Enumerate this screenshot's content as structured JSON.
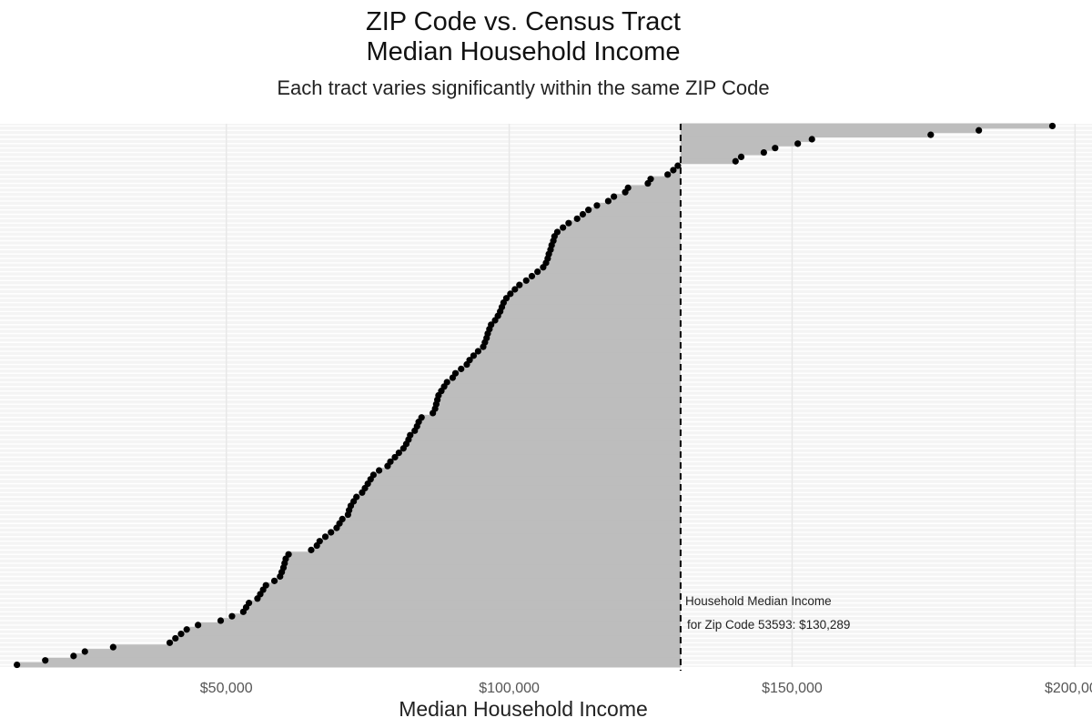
{
  "chart_data": {
    "type": "bar",
    "orientation": "horizontal",
    "title_line1": "ZIP Code vs. Census Tract",
    "title_line2": "Median Household Income",
    "subtitle": "Each tract varies significantly within the same ZIP Code",
    "xlabel": "Median Household Income",
    "ylabel": "",
    "xlim": [
      10000,
      203000
    ],
    "x_ticks": [
      50000,
      100000,
      150000,
      200000
    ],
    "x_tick_labels": [
      "$50,000",
      "$100,000",
      "$150,000",
      "$200,000"
    ],
    "reference_value": 130289,
    "annotation_line1": "Household Median Income",
    "annotation_line2": "for Zip Code 53593: $130,289",
    "grid": true,
    "colors": {
      "bar": "#bdbdbd",
      "point": "#000000",
      "grid": "#e8e8e8",
      "panel": "#f4f4f4",
      "reference_line": "#000000"
    },
    "values": [
      196000,
      183000,
      174500,
      153500,
      151000,
      147000,
      145000,
      141000,
      140000,
      129800,
      129000,
      128000,
      125000,
      124500,
      121000,
      120500,
      118500,
      117500,
      115500,
      114000,
      113000,
      112000,
      110500,
      109500,
      108500,
      108000,
      107800,
      107500,
      107300,
      107000,
      106800,
      106500,
      106000,
      105000,
      104000,
      103000,
      101800,
      101000,
      100200,
      99500,
      99000,
      98700,
      98400,
      98000,
      97500,
      96800,
      96500,
      96200,
      96000,
      95700,
      95400,
      94500,
      93700,
      93000,
      92500,
      91500,
      90500,
      90000,
      89000,
      88500,
      88000,
      87500,
      87300,
      87100,
      86900,
      86500,
      84500,
      84000,
      83700,
      83300,
      82500,
      82200,
      81800,
      81300,
      80500,
      79800,
      79000,
      78500,
      77000,
      76000,
      75500,
      75000,
      74500,
      74000,
      73000,
      72500,
      72000,
      71700,
      71500,
      70500,
      70000,
      69500,
      68500,
      67500,
      66500,
      66000,
      65000,
      61000,
      60500,
      60300,
      60100,
      59800,
      59500,
      58500,
      57000,
      56500,
      56000,
      55500,
      54000,
      53500,
      53000,
      51000,
      49000,
      45000,
      43000,
      42000,
      41000,
      40000,
      30000,
      25000,
      23000,
      18000,
      13000
    ]
  }
}
